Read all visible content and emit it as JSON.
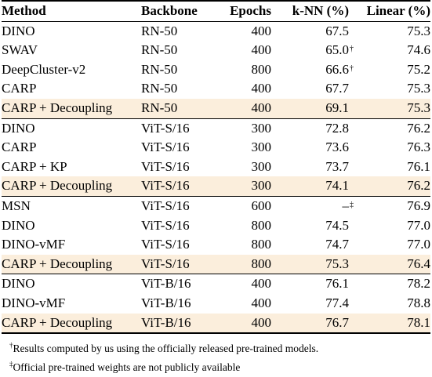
{
  "table": {
    "headers": {
      "method": "Method",
      "backbone": "Backbone",
      "epochs": "Epochs",
      "knn": "k-NN (%)",
      "linear": "Linear (%)"
    },
    "rows": [
      {
        "method": "DINO",
        "backbone": "RN-50",
        "epochs": "400",
        "knn": "67.5",
        "knn_mark": "",
        "linear": "75.3",
        "highlight": false,
        "group_start": false
      },
      {
        "method": "SWAV",
        "backbone": "RN-50",
        "epochs": "400",
        "knn": "65.0",
        "knn_mark": "†",
        "linear": "74.6",
        "highlight": false,
        "group_start": false
      },
      {
        "method": "DeepCluster-v2",
        "backbone": "RN-50",
        "epochs": "800",
        "knn": "66.6",
        "knn_mark": "†",
        "linear": "75.2",
        "highlight": false,
        "group_start": false
      },
      {
        "method": "CARP",
        "backbone": "RN-50",
        "epochs": "400",
        "knn": "67.7",
        "knn_mark": "",
        "linear": "75.3",
        "highlight": false,
        "group_start": false
      },
      {
        "method": "CARP + Decoupling",
        "backbone": "RN-50",
        "epochs": "400",
        "knn": "69.1",
        "knn_mark": "",
        "linear": "75.3",
        "highlight": true,
        "group_start": false
      },
      {
        "method": "DINO",
        "backbone": "ViT-S/16",
        "epochs": "300",
        "knn": "72.8",
        "knn_mark": "",
        "linear": "76.2",
        "highlight": false,
        "group_start": true
      },
      {
        "method": "CARP",
        "backbone": "ViT-S/16",
        "epochs": "300",
        "knn": "73.6",
        "knn_mark": "",
        "linear": "76.3",
        "highlight": false,
        "group_start": false
      },
      {
        "method": "CARP + KP",
        "backbone": "ViT-S/16",
        "epochs": "300",
        "knn": "73.7",
        "knn_mark": "",
        "linear": "76.1",
        "highlight": false,
        "group_start": false
      },
      {
        "method": "CARP + Decoupling",
        "backbone": "ViT-S/16",
        "epochs": "300",
        "knn": "74.1",
        "knn_mark": "",
        "linear": "76.2",
        "highlight": true,
        "group_start": false
      },
      {
        "method": "MSN",
        "backbone": "ViT-S/16",
        "epochs": "600",
        "knn": "–",
        "knn_mark": "‡",
        "linear": "76.9",
        "highlight": false,
        "group_start": true
      },
      {
        "method": "DINO",
        "backbone": "ViT-S/16",
        "epochs": "800",
        "knn": "74.5",
        "knn_mark": "",
        "linear": "77.0",
        "highlight": false,
        "group_start": false
      },
      {
        "method": "DINO-vMF",
        "backbone": "ViT-S/16",
        "epochs": "800",
        "knn": "74.7",
        "knn_mark": "",
        "linear": "77.0",
        "highlight": false,
        "group_start": false
      },
      {
        "method": "CARP + Decoupling",
        "backbone": "ViT-S/16",
        "epochs": "800",
        "knn": "75.3",
        "knn_mark": "",
        "linear": "76.4",
        "highlight": true,
        "group_start": false
      },
      {
        "method": "DINO",
        "backbone": "ViT-B/16",
        "epochs": "400",
        "knn": "76.1",
        "knn_mark": "",
        "linear": "78.2",
        "highlight": false,
        "group_start": true
      },
      {
        "method": "DINO-vMF",
        "backbone": "ViT-B/16",
        "epochs": "400",
        "knn": "77.4",
        "knn_mark": "",
        "linear": "78.8",
        "highlight": false,
        "group_start": false
      },
      {
        "method": "CARP + Decoupling",
        "backbone": "ViT-B/16",
        "epochs": "400",
        "knn": "76.7",
        "knn_mark": "",
        "linear": "78.1",
        "highlight": true,
        "group_start": false
      }
    ]
  },
  "footnotes": [
    {
      "mark": "†",
      "text": "Results computed by us using the officially released pre-trained models."
    },
    {
      "mark": "‡",
      "text": "Official pre-trained weights are not publicly available"
    }
  ],
  "colors": {
    "highlight_row": "#fbeedc"
  }
}
